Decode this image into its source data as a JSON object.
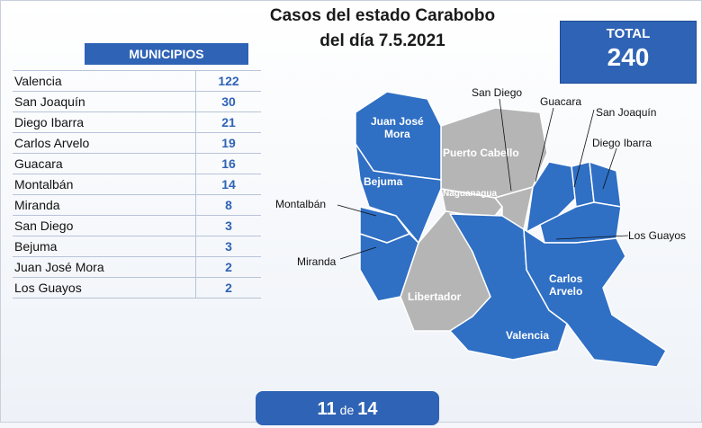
{
  "title_line1": "Casos del estado Carabobo",
  "title_line2": "del día 7.5.2021",
  "table": {
    "header": "MUNICIPIOS",
    "rows": [
      {
        "name": "Valencia",
        "count": "122"
      },
      {
        "name": "San Joaquín",
        "count": "30"
      },
      {
        "name": "Diego Ibarra",
        "count": "21"
      },
      {
        "name": "Carlos Arvelo",
        "count": "19"
      },
      {
        "name": "Guacara",
        "count": "16"
      },
      {
        "name": "Montalbán",
        "count": "14"
      },
      {
        "name": "Miranda",
        "count": "8"
      },
      {
        "name": "San Diego",
        "count": "3"
      },
      {
        "name": "Bejuma",
        "count": "3"
      },
      {
        "name": "Juan José Mora",
        "count": "2"
      },
      {
        "name": "Los Guayos",
        "count": "2"
      }
    ]
  },
  "total": {
    "label": "TOTAL",
    "value": "240"
  },
  "map": {
    "colors": {
      "affected": "#2f6fc4",
      "unaffected": "#b5b5b5",
      "border": "#ffffff"
    },
    "labels": {
      "juan_jose_mora": "Juan José\nMora",
      "bejuma": "Bejuma",
      "puerto_cabello": "Puerto Cabello",
      "naguanagua": "Naguanagua",
      "libertador": "Libertador",
      "carlos_arvelo": "Carlos\nArvelo",
      "valencia": "Valencia",
      "san_diego": "San Diego",
      "guacara": "Guacara",
      "san_joaquin": "San Joaquín",
      "diego_ibarra": "Diego Ibarra",
      "los_guayos": "Los Guayos",
      "montalban": "Montalbán",
      "miranda": "Miranda"
    }
  },
  "pager": {
    "current": "11",
    "sep": "de",
    "total": "14"
  }
}
